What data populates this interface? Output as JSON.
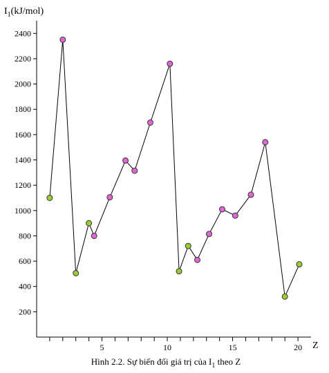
{
  "chart_data": {
    "type": "line",
    "ylabel": {
      "main": "I",
      "sub": "1",
      "unit": "(kJ/mol)"
    },
    "xlabel": "Z",
    "caption": {
      "before": "Hình 2.2. Sự biến đổi giá trị của I",
      "sub": "1",
      "after": " theo Z"
    },
    "ylim": [
      0,
      2500
    ],
    "yticks": [
      200,
      400,
      600,
      800,
      1000,
      1200,
      1400,
      1600,
      1800,
      2000,
      2200,
      2400
    ],
    "xlim": [
      0,
      21
    ],
    "xticks": [
      1,
      2,
      3,
      4,
      5,
      6,
      7,
      8,
      9,
      10,
      11,
      12,
      13,
      14,
      15,
      16,
      17,
      18,
      19,
      20
    ],
    "xtick_labels": {
      "5": "5",
      "10": "10",
      "15": "15",
      "20": "20"
    },
    "grid": false,
    "line_color": "#000000",
    "point_colors": {
      "green": "#9acd32",
      "pink": "#e066d6"
    },
    "series": [
      {
        "x": [
          1,
          2,
          3,
          4,
          4.4,
          5.6,
          6.8,
          7.5,
          8.7,
          10.2,
          10.9,
          11.6,
          12.3,
          13.2,
          14.2,
          15.2,
          16.4,
          17.5,
          19,
          20.1
        ],
        "values": [
          1100,
          2350,
          505,
          900,
          800,
          1105,
          1395,
          1315,
          1695,
          2160,
          520,
          720,
          610,
          815,
          1010,
          960,
          1125,
          1540,
          320,
          575
        ],
        "colors": [
          "green",
          "pink",
          "green",
          "green",
          "pink",
          "pink",
          "pink",
          "pink",
          "pink",
          "pink",
          "green",
          "green",
          "pink",
          "pink",
          "pink",
          "pink",
          "pink",
          "pink",
          "green",
          "green"
        ]
      }
    ]
  }
}
